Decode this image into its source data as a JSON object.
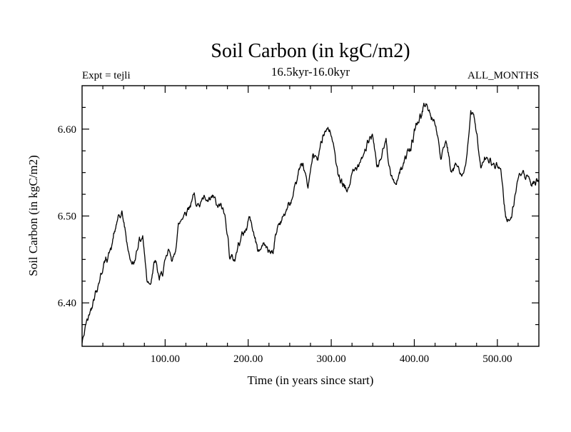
{
  "header": {
    "title": "Soil Carbon (in kgC/m2)",
    "subtitle": "16.5kyr-16.0kyr",
    "expt_label": "Expt = tejli",
    "months_label": "ALL_MONTHS"
  },
  "chart_data": {
    "type": "line",
    "title": "Soil Carbon (in kgC/m2)",
    "subtitle": "16.5kyr-16.0kyr",
    "annotations": [
      "Expt = tejli",
      "ALL_MONTHS"
    ],
    "xlabel": "Time (in years since start)",
    "ylabel": "Soil Carbon (in kgC/m2)",
    "xlim": [
      0,
      550
    ],
    "ylim": [
      6.35,
      6.65
    ],
    "xticks": [
      100,
      200,
      300,
      400,
      500
    ],
    "xtick_labels": [
      "100.00",
      "200.00",
      "300.00",
      "400.00",
      "500.00"
    ],
    "yticks": [
      6.4,
      6.5,
      6.6
    ],
    "ytick_labels": [
      "6.40",
      "6.50",
      "6.60"
    ],
    "x_minor_step": 25,
    "y_minor_step": 0.025,
    "grid": false,
    "legend": null,
    "line_color": "#000000",
    "background": "#ffffff",
    "series": [
      {
        "name": "soil_carbon_kgC_m2",
        "x": [
          0,
          5,
          12,
          20,
          28,
          35,
          42,
          48,
          52,
          57,
          62,
          68,
          73,
          78,
          82,
          88,
          93,
          98,
          104,
          110,
          116,
          122,
          128,
          135,
          140,
          147,
          152,
          158,
          163,
          168,
          173,
          178,
          184,
          190,
          196,
          202,
          208,
          213,
          218,
          224,
          230,
          236,
          242,
          248,
          254,
          260,
          266,
          272,
          278,
          284,
          290,
          296,
          302,
          308,
          314,
          320,
          326,
          332,
          338,
          344,
          350,
          355,
          360,
          366,
          372,
          378,
          384,
          390,
          396,
          402,
          408,
          414,
          420,
          426,
          432,
          438,
          444,
          450,
          456,
          462,
          468,
          474,
          480,
          486,
          492,
          498,
          504,
          510,
          516,
          522,
          528,
          534,
          540,
          545,
          550
        ],
        "y": [
          6.355,
          6.38,
          6.4,
          6.42,
          6.445,
          6.46,
          6.49,
          6.5,
          6.48,
          6.45,
          6.44,
          6.47,
          6.48,
          6.43,
          6.425,
          6.45,
          6.43,
          6.44,
          6.455,
          6.45,
          6.49,
          6.5,
          6.505,
          6.525,
          6.51,
          6.515,
          6.51,
          6.52,
          6.51,
          6.515,
          6.5,
          6.455,
          6.45,
          6.47,
          6.48,
          6.5,
          6.47,
          6.46,
          6.475,
          6.465,
          6.46,
          6.49,
          6.5,
          6.515,
          6.52,
          6.545,
          6.56,
          6.535,
          6.575,
          6.57,
          6.6,
          6.605,
          6.59,
          6.545,
          6.53,
          6.525,
          6.55,
          6.56,
          6.57,
          6.585,
          6.595,
          6.555,
          6.57,
          6.59,
          6.545,
          6.535,
          6.555,
          6.57,
          6.575,
          6.6,
          6.615,
          6.635,
          6.615,
          6.6,
          6.565,
          6.585,
          6.555,
          6.565,
          6.55,
          6.555,
          6.62,
          6.6,
          6.555,
          6.57,
          6.565,
          6.56,
          6.555,
          6.5,
          6.495,
          6.53,
          6.55,
          6.545,
          6.54,
          6.545,
          6.54
        ]
      }
    ],
    "noise": {
      "seed": 42,
      "fast_amp": 0.0065,
      "slow_amp": 0.0055,
      "sample_step": 0.5
    }
  }
}
